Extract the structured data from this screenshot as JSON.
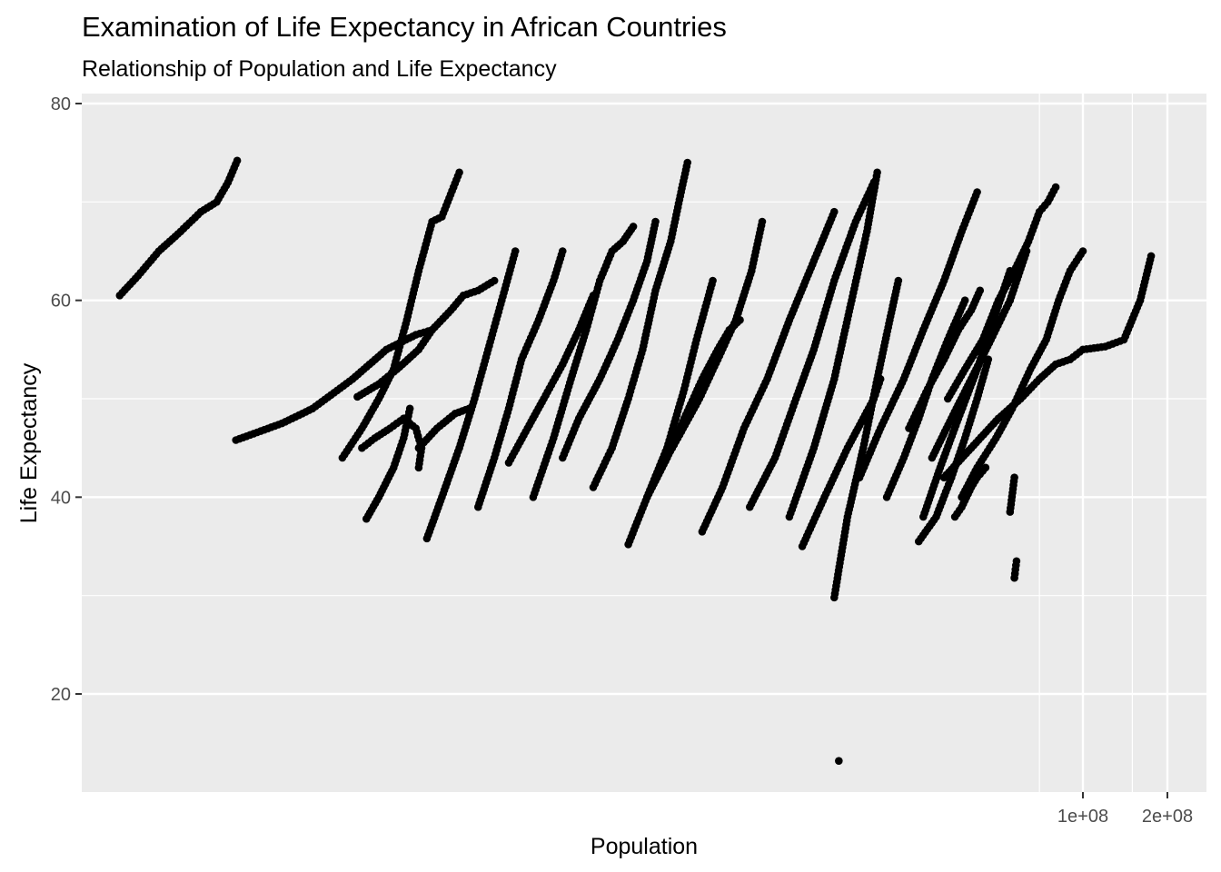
{
  "chart_data": {
    "type": "scatter",
    "title": "Examination of Life Expectancy in African Countries",
    "subtitle": "Relationship of Population and Life Expectancy",
    "xlabel": "Population",
    "ylabel": "Life Expectancy",
    "x_scale": "log10",
    "xlim": [
      25000,
      250000000
    ],
    "ylim": [
      10,
      80
    ],
    "x_ticks": [
      {
        "value": 100000000,
        "label": "1e+08"
      },
      {
        "value": 200000000,
        "label": "2e+08"
      }
    ],
    "y_ticks": [
      {
        "value": 20,
        "label": "20"
      },
      {
        "value": 40,
        "label": "40"
      },
      {
        "value": 60,
        "label": "60"
      },
      {
        "value": 80,
        "label": "80"
      }
    ],
    "y_minor": [
      30,
      50,
      70
    ],
    "grid": true,
    "point_color": "#000000",
    "panel_background": "#ebebeb",
    "grid_color": "#ffffff",
    "series": [
      {
        "x": [
          37000,
          43000,
          51000,
          61000,
          72000,
          82000,
          90000,
          97000
        ],
        "y": [
          60.5,
          62.5,
          65,
          67,
          69,
          70,
          72,
          74.2
        ]
      },
      {
        "x": [
          96000,
          140000,
          180000,
          250000,
          330000,
          420000,
          480000
        ],
        "y": [
          45.8,
          47.5,
          49,
          52,
          55,
          56.5,
          57
        ]
      },
      {
        "x": [
          260000,
          310000,
          360000,
          430000,
          480000,
          560000,
          620000,
          700000,
          800000
        ],
        "y": [
          50.2,
          51.5,
          53,
          55,
          57,
          59,
          60.5,
          61,
          62
        ]
      },
      {
        "x": [
          230000,
          270000,
          310000,
          350000,
          390000,
          430000,
          480000,
          520000,
          600000
        ],
        "y": [
          44,
          47,
          50,
          53,
          58,
          63,
          68,
          68.5,
          73
        ]
      },
      {
        "x": [
          270000,
          300000,
          340000,
          380000,
          420000,
          440000,
          430000
        ],
        "y": [
          45,
          46,
          47,
          48,
          47,
          45,
          43
        ]
      },
      {
        "x": [
          280000,
          310000,
          350000,
          380000,
          400000
        ],
        "y": [
          37.8,
          40,
          43,
          46,
          49
        ]
      },
      {
        "x": [
          460000,
          520000,
          600000,
          680000,
          760000,
          850000,
          950000
        ],
        "y": [
          35.8,
          40,
          45,
          50,
          55,
          60,
          65
        ]
      },
      {
        "x": [
          430000,
          500000,
          580000,
          650000
        ],
        "y": [
          45,
          47,
          48.5,
          49
        ]
      },
      {
        "x": [
          700000,
          800000,
          900000,
          1000000,
          1150000,
          1300000,
          1400000
        ],
        "y": [
          39,
          44,
          49,
          54,
          58,
          62,
          65
        ]
      },
      {
        "x": [
          900000,
          1050000,
          1200000,
          1400000,
          1600000,
          1800000
        ],
        "y": [
          43.5,
          47,
          50,
          53.5,
          57,
          60.5
        ]
      },
      {
        "x": [
          1400000,
          1600000,
          1900000,
          2200000,
          2500000,
          2800000,
          3000000
        ],
        "y": [
          44,
          48,
          52,
          56,
          60,
          64,
          68
        ]
      },
      {
        "x": [
          1100000,
          1300000,
          1500000,
          1700000,
          1900000,
          2100000,
          2300000,
          2500000
        ],
        "y": [
          40,
          46,
          52,
          57,
          62,
          65,
          66,
          67.5
        ]
      },
      {
        "x": [
          1800000,
          2100000,
          2400000,
          2700000,
          3000000,
          3400000,
          3700000,
          3900000
        ],
        "y": [
          41,
          45,
          50,
          55,
          61,
          66,
          71,
          74
        ]
      },
      {
        "x": [
          2400000,
          2800000,
          3300000,
          3800000,
          4200000,
          4800000
        ],
        "y": [
          35.2,
          40,
          45,
          51,
          56,
          62
        ]
      },
      {
        "x": [
          3000000,
          3600000,
          4300000,
          5000000,
          5800000,
          6600000,
          7200000
        ],
        "y": [
          42,
          46,
          50,
          54,
          58,
          63,
          68
        ]
      },
      {
        "x": [
          2800000,
          3300000,
          3800000,
          4400000,
          5000000,
          5500000,
          6000000
        ],
        "y": [
          40,
          44,
          48,
          52,
          55,
          57,
          58
        ]
      },
      {
        "x": [
          4400000,
          5200000,
          6200000,
          7500000,
          9000000,
          11000000,
          13000000
        ],
        "y": [
          36.5,
          41,
          47,
          52,
          58,
          64,
          69
        ]
      },
      {
        "x": [
          6500000,
          8000000,
          9500000,
          11000000,
          13000000,
          15500000,
          18000000
        ],
        "y": [
          39,
          44,
          50,
          55,
          62,
          68,
          72
        ]
      },
      {
        "x": [
          9000000,
          11000000,
          13000000,
          15000000,
          17000000,
          18500000
        ],
        "y": [
          38,
          45,
          52,
          60,
          67,
          73
        ]
      },
      {
        "x": [
          13000000,
          14500000,
          16500000,
          18500000,
          20500000,
          22000000
        ],
        "y": [
          29.8,
          38,
          45,
          52,
          58,
          62
        ]
      },
      {
        "x": [
          10000000,
          12000000,
          14500000,
          16500000,
          18000000,
          19000000
        ],
        "y": [
          35,
          40,
          45,
          48,
          50,
          52
        ]
      },
      {
        "x": [
          16000000,
          19000000,
          23000000,
          27000000,
          32000000,
          37000000,
          42000000
        ],
        "y": [
          42,
          47,
          52,
          57,
          62,
          67,
          71
        ]
      },
      {
        "x": [
          20000000,
          23000000,
          26000000,
          29000000,
          33000000,
          38000000
        ],
        "y": [
          40,
          44,
          48,
          52,
          56,
          60
        ]
      },
      {
        "x": [
          24000000,
          28000000,
          32000000,
          36000000,
          40000000,
          43000000
        ],
        "y": [
          47,
          51,
          54,
          57,
          59,
          61
        ]
      },
      {
        "x": [
          27000000,
          31000000,
          36000000,
          42000000,
          48000000,
          55000000
        ],
        "y": [
          38,
          43,
          48,
          53,
          58,
          63
        ]
      },
      {
        "x": [
          29000000,
          34000000,
          40000000,
          47000000,
          55000000,
          63000000
        ],
        "y": [
          44,
          48,
          52,
          56,
          60,
          65
        ]
      },
      {
        "x": [
          35000000,
          37000000,
          40000000,
          42000000,
          45000000
        ],
        "y": [
          38,
          39,
          41,
          42,
          43
        ]
      },
      {
        "x": [
          37000000,
          42000000,
          49000000,
          56000000,
          65000000,
          74000000,
          82000000,
          90000000,
          100000000
        ],
        "y": [
          40,
          43,
          46,
          49,
          53,
          56,
          60,
          63,
          65
        ]
      },
      {
        "x": [
          33000000,
          38000000,
          44000000,
          50000000,
          57000000,
          64000000,
          70000000,
          75000000,
          80000000
        ],
        "y": [
          50,
          53,
          56,
          60,
          63,
          66,
          69,
          70,
          71.5
        ]
      },
      {
        "x": [
          32000000,
          40000000,
          50000000,
          60000000,
          70000000,
          80000000,
          90000000,
          100000000,
          120000000,
          140000000,
          160000000,
          175000000
        ],
        "y": [
          42,
          45,
          48,
          50,
          52,
          53.5,
          54,
          55,
          55.3,
          56,
          60,
          64.5
        ]
      },
      {
        "x": [
          26000000,
          30000000,
          34000000,
          38000000,
          42000000,
          46000000
        ],
        "y": [
          35.5,
          38,
          42,
          46,
          50,
          54
        ]
      },
      {
        "x": [
          13500000
        ],
        "y": [
          13.2
        ]
      },
      {
        "x": [
          57000000,
          58000000
        ],
        "y": [
          31.8,
          33.5
        ]
      },
      {
        "x": [
          55000000,
          57000000
        ],
        "y": [
          38.5,
          42
        ]
      }
    ]
  }
}
